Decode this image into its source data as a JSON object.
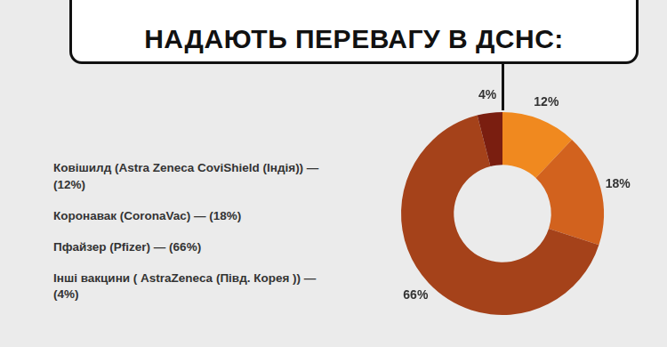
{
  "chart_data": {
    "type": "doughnut",
    "title": "НАДАЮТЬ ПЕРЕВАГУ В ДСНС:",
    "categories": [
      "Ковішилд (Astra Zeneca CoviShield (Індія)) — (12%)",
      "Коронавак (CoronaVac) — (18%)",
      "Пфайзер (Pfizer) — (66%)",
      "Інші вакцини ( AstraZeneca (Півд. Корея )) — (4%)"
    ],
    "values": [
      12,
      18,
      66,
      4
    ],
    "value_labels": [
      "12%",
      "18%",
      "66%",
      "4%"
    ],
    "colors": [
      "#f0891f",
      "#d2621e",
      "#a5421a",
      "#7a1e10"
    ],
    "data_labels": true
  }
}
